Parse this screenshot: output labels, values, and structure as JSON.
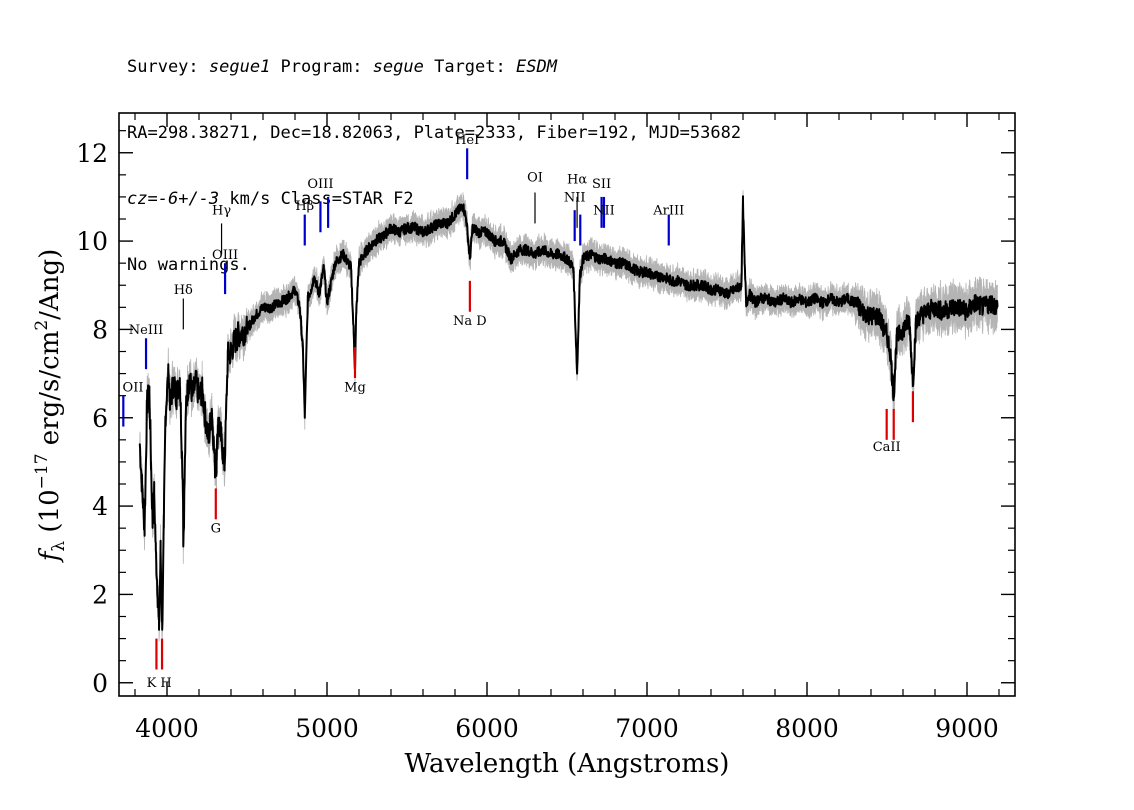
{
  "header": {
    "survey_label": "Survey: ",
    "survey_value": "segue1",
    "program_label": " Program: ",
    "program_value": "segue",
    "target_label": " Target: ",
    "target_value": "ESDM",
    "line2": "RA=298.38271, Dec=18.82063, Plate=2333, Fiber=192, MJD=53682",
    "cz_label": "cz",
    "cz_eq": "=",
    "cz_value": "-6+/-3",
    "cz_rest": " km/s Class=STAR F2",
    "line4": "No warnings."
  },
  "chart_data": {
    "type": "line",
    "xlabel": "Wavelength (Angstroms)",
    "ylabel_prefix": "f",
    "ylabel_sub": "λ",
    "ylabel_main": " (10",
    "ylabel_exp": "−17",
    "ylabel_mid": " erg/s/cm",
    "ylabel_exp2": "2",
    "ylabel_end": "/Ang)",
    "xlim": [
      3700,
      9300
    ],
    "ylim": [
      -0.3,
      12.9
    ],
    "xticks": [
      4000,
      5000,
      6000,
      7000,
      8000,
      9000
    ],
    "yticks": [
      0,
      2,
      4,
      6,
      8,
      10,
      12
    ],
    "colors": {
      "spectrum": "#000000",
      "error_band": "#b4b4b4",
      "emission": "#0000cc",
      "absorption": "#dd0000",
      "other": "#000000"
    },
    "series": [
      {
        "x": [
          3830,
          3845,
          3860,
          3875,
          3890,
          3900,
          3910,
          3920,
          3930,
          3940,
          3950,
          3960,
          3970,
          3980,
          3990,
          4000,
          4010,
          4020,
          4040,
          4060,
          4080,
          4100,
          4102,
          4120,
          4140,
          4160,
          4180,
          4200,
          4220,
          4240,
          4260,
          4280,
          4300,
          4310,
          4320,
          4340,
          4360,
          4380,
          4400,
          4420,
          4450,
          4500,
          4550,
          4600,
          4650,
          4700,
          4750,
          4800,
          4830,
          4850,
          4861,
          4880,
          4900,
          4920,
          4950,
          4980,
          5000,
          5050,
          5100,
          5150,
          5167,
          5175,
          5183,
          5200,
          5250,
          5300,
          5350,
          5400,
          5450,
          5500,
          5550,
          5600,
          5650,
          5700,
          5750,
          5800,
          5850,
          5870,
          5880,
          5893,
          5910,
          5950,
          6000,
          6050,
          6100,
          6150,
          6200,
          6250,
          6300,
          6350,
          6400,
          6450,
          6500,
          6540,
          6563,
          6580,
          6600,
          6650,
          6700,
          6750,
          6800,
          6850,
          6900,
          6950,
          7000,
          7050,
          7100,
          7150,
          7200,
          7250,
          7300,
          7350,
          7400,
          7450,
          7500,
          7550,
          7590,
          7600,
          7610,
          7620,
          7640,
          7680,
          7700,
          7750,
          7800,
          7850,
          7900,
          7950,
          8000,
          8050,
          8100,
          8150,
          8200,
          8250,
          8300,
          8350,
          8400,
          8450,
          8480,
          8498,
          8520,
          8542,
          8560,
          8600,
          8640,
          8662,
          8680,
          8700,
          8750,
          8800,
          8850,
          8900,
          8950,
          9000,
          9050,
          9100,
          9150,
          9190
        ],
        "values": [
          5.4,
          4.4,
          3.5,
          6.3,
          6.6,
          5.0,
          3.6,
          4.3,
          3.0,
          2.2,
          1.2,
          3.0,
          1.2,
          3.5,
          6.0,
          6.6,
          7.0,
          6.3,
          6.8,
          6.5,
          6.9,
          4.4,
          3.1,
          6.4,
          6.9,
          6.5,
          6.8,
          6.5,
          6.6,
          6.0,
          5.5,
          6.2,
          4.9,
          5.0,
          6.0,
          5.5,
          4.9,
          7.4,
          7.5,
          7.7,
          7.9,
          8.0,
          8.3,
          8.5,
          8.5,
          8.6,
          8.7,
          8.9,
          8.5,
          7.5,
          6.0,
          8.7,
          8.9,
          9.2,
          8.8,
          9.4,
          8.6,
          9.5,
          9.7,
          9.4,
          7.9,
          7.1,
          8.4,
          9.5,
          9.8,
          10.0,
          10.1,
          10.3,
          10.2,
          10.3,
          10.3,
          10.2,
          10.3,
          10.4,
          10.4,
          10.6,
          10.8,
          10.5,
          10.1,
          9.6,
          10.3,
          10.2,
          10.2,
          10.0,
          10.0,
          9.6,
          9.8,
          9.8,
          9.7,
          9.8,
          9.7,
          9.7,
          9.6,
          9.4,
          7.0,
          9.2,
          9.6,
          9.7,
          9.6,
          9.6,
          9.5,
          9.5,
          9.4,
          9.3,
          9.3,
          9.2,
          9.2,
          9.1,
          9.1,
          9.0,
          9.0,
          9.0,
          8.9,
          8.9,
          8.8,
          8.9,
          9.0,
          10.9,
          9.5,
          8.6,
          8.8,
          8.6,
          8.7,
          8.7,
          8.6,
          8.7,
          8.6,
          8.7,
          8.6,
          8.7,
          8.6,
          8.7,
          8.6,
          8.7,
          8.6,
          8.4,
          8.3,
          8.3,
          8.0,
          7.9,
          7.5,
          6.5,
          7.8,
          8.0,
          8.2,
          6.8,
          8.1,
          8.3,
          8.4,
          8.5,
          8.4,
          8.5,
          8.5,
          8.4,
          8.6,
          8.5,
          8.6,
          8.5
        ]
      }
    ],
    "lines": [
      {
        "label": "OII",
        "x": 3727,
        "kind": "emission",
        "y1": 5.8,
        "y2": 6.5,
        "label_y": 6.6
      },
      {
        "label": "NeIII",
        "x": 3869,
        "kind": "emission",
        "y1": 7.1,
        "y2": 7.8,
        "label_y": 7.9
      },
      {
        "label": "K",
        "x": 3934,
        "kind": "absorption",
        "y1": 0.3,
        "y2": 1.0,
        "label_y": -0.1
      },
      {
        "label": "H",
        "x": 3969,
        "kind": "absorption",
        "y1": 0.3,
        "y2": 1.0,
        "label_y": -0.1
      },
      {
        "label": "Hδ",
        "x": 4102,
        "kind": "other",
        "y1": 8.0,
        "y2": 8.7,
        "label_y": 8.8
      },
      {
        "label": "G",
        "x": 4305,
        "kind": "absorption",
        "y1": 3.7,
        "y2": 4.4,
        "label_y": 3.4
      },
      {
        "label": "Hγ",
        "x": 4341,
        "kind": "other",
        "y1": 9.7,
        "y2": 10.4,
        "label_y": 10.6
      },
      {
        "label": "OIII",
        "x": 4363,
        "kind": "emission",
        "y1": 8.8,
        "y2": 9.5,
        "label_y": 9.6
      },
      {
        "label": "Hβ",
        "x": 4861,
        "kind": "emission",
        "y1": 9.9,
        "y2": 10.6,
        "label_y": 10.7
      },
      {
        "label": "OIII",
        "x": 4959,
        "kind": "emission",
        "y1": 10.2,
        "y2": 10.9,
        "label_y": 11.2
      },
      {
        "label": "",
        "x": 5007,
        "kind": "emission",
        "y1": 10.3,
        "y2": 11.0,
        "label_y": 11.2
      },
      {
        "label": "Mg",
        "x": 5175,
        "kind": "absorption",
        "y1": 6.9,
        "y2": 7.6,
        "label_y": 6.6
      },
      {
        "label": "HeI",
        "x": 5876,
        "kind": "emission",
        "y1": 11.4,
        "y2": 12.1,
        "label_y": 12.2
      },
      {
        "label": "Na D",
        "x": 5893,
        "kind": "absorption",
        "y1": 8.4,
        "y2": 9.1,
        "label_y": 8.1
      },
      {
        "label": "OI",
        "x": 6300,
        "kind": "other",
        "y1": 10.4,
        "y2": 11.1,
        "label_y": 11.35
      },
      {
        "label": "NII",
        "x": 6548,
        "kind": "emission",
        "y1": 10.0,
        "y2": 10.7,
        "label_y": 10.9
      },
      {
        "label": "Hα",
        "x": 6563,
        "kind": "other",
        "y1": 10.3,
        "y2": 11.0,
        "label_y": 11.3
      },
      {
        "label": "",
        "x": 6583,
        "kind": "emission",
        "y1": 9.9,
        "y2": 10.6,
        "label_y": 10.6
      },
      {
        "label": "SII",
        "x": 6716,
        "kind": "emission",
        "y1": 10.3,
        "y2": 11.0,
        "label_y": 11.2
      },
      {
        "label": "NII",
        "x": 6731,
        "kind": "emission",
        "y1": 10.3,
        "y2": 11.0,
        "label_y": 10.6
      },
      {
        "label": "ArIII",
        "x": 7136,
        "kind": "emission",
        "y1": 9.9,
        "y2": 10.6,
        "label_y": 10.6
      },
      {
        "label": "CaII",
        "x": 8498,
        "kind": "absorption",
        "y1": 5.5,
        "y2": 6.2,
        "label_y": 5.25
      },
      {
        "label": "",
        "x": 8542,
        "kind": "absorption",
        "y1": 5.5,
        "y2": 6.2,
        "label_y": 5.25
      },
      {
        "label": "",
        "x": 8662,
        "kind": "absorption",
        "y1": 5.9,
        "y2": 6.6,
        "label_y": 5.25
      }
    ]
  }
}
